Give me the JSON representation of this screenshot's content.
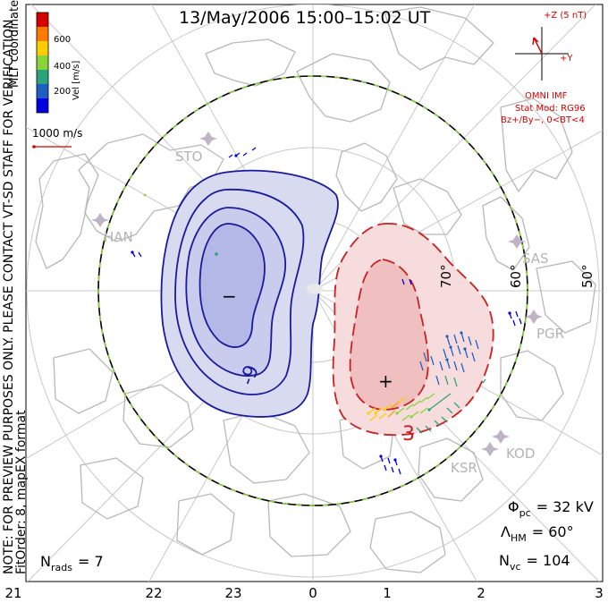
{
  "title": "13/May/2006 15:00–15:02 UT",
  "colorbar": {
    "label": "Vel [m/s]",
    "ticks": [
      "600",
      "400",
      "200"
    ],
    "colors": [
      "#d40000",
      "#ff7a00",
      "#ffcc00",
      "#8ad43a",
      "#2aa37a",
      "#1f5fc4",
      "#0000e0"
    ]
  },
  "side_notes": {
    "coords": "MLT coordinates",
    "preview": "NOTE: FOR PREVIEW PURPOSES ONLY. PLEASE CONTACT VT-SD STAFF FOR VERIFICATION.",
    "fit": "FitOrder: 8, mapEX format"
  },
  "scale_vector": {
    "label": "1000 m/s"
  },
  "imf": {
    "z_label": "+Z (5 nT)",
    "y_label": "+Y",
    "source": "OMNI IMF",
    "model": "Stat Mod: RG96",
    "condition": "Bz+/By−, 0<BT<4"
  },
  "lat_labels": [
    "70°",
    "60°",
    "50°"
  ],
  "stations": [
    "STO",
    "HAN",
    "SAS",
    "PGR",
    "KOD",
    "KSR"
  ],
  "contour_labels": {
    "negative": "−",
    "positive": "+",
    "neg_value": "-9",
    "pos_value": "3"
  },
  "stats": {
    "phi_pc": {
      "symbol": "Φ",
      "sub": "pc",
      "value": "= 32 kV"
    },
    "lambda_hm": {
      "symbol": "Λ",
      "sub": "HM",
      "value": "= 60°"
    },
    "n_vc": {
      "symbol": "N",
      "sub": "vc",
      "value": "= 104"
    },
    "n_rads": {
      "symbol": "N",
      "sub": "rads",
      "value": "= 7"
    }
  },
  "mlt_axis": [
    "21",
    "22",
    "23",
    "0",
    "1",
    "2",
    "3"
  ],
  "colors": {
    "negative_fill": "#d8dbf0",
    "negative_core": "#b4b8e6",
    "negative_line": "#1a1aa0",
    "positive_fill": "#f6dcdc",
    "positive_core": "#f0c0c0",
    "positive_line": "#cc1f1f",
    "coast": "#b8b8b8",
    "grid": "#c8c8c8",
    "boundary_green": "#8ad43a"
  }
}
